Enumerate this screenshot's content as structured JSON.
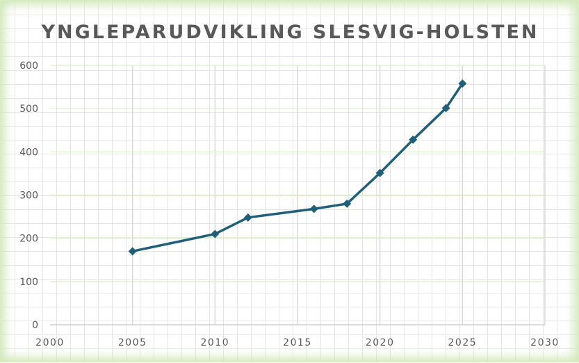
{
  "chart_data": {
    "type": "scatter",
    "title": "YNGLEPARUDVIKLING SLESVIG-HOLSTEN",
    "xlabel": "",
    "ylabel": "",
    "xlim": [
      2000,
      2030
    ],
    "ylim": [
      0,
      600
    ],
    "xticks": [
      2000,
      2005,
      2010,
      2015,
      2020,
      2025,
      2030
    ],
    "yticks": [
      0,
      100,
      200,
      300,
      400,
      500,
      600
    ],
    "grid": true,
    "legend": "none",
    "series": [
      {
        "x": [
          2005,
          2010,
          2012,
          2016,
          2018,
          2020,
          2022,
          2024,
          2025
        ],
        "y": [
          170,
          210,
          248,
          268,
          280,
          351,
          428,
          501,
          558
        ]
      }
    ],
    "colors": {
      "line": "#1f5f7a",
      "gridline_glow": "#cfe8b6",
      "vertical_grid": "#d9d9d9",
      "text": "#595959"
    }
  }
}
